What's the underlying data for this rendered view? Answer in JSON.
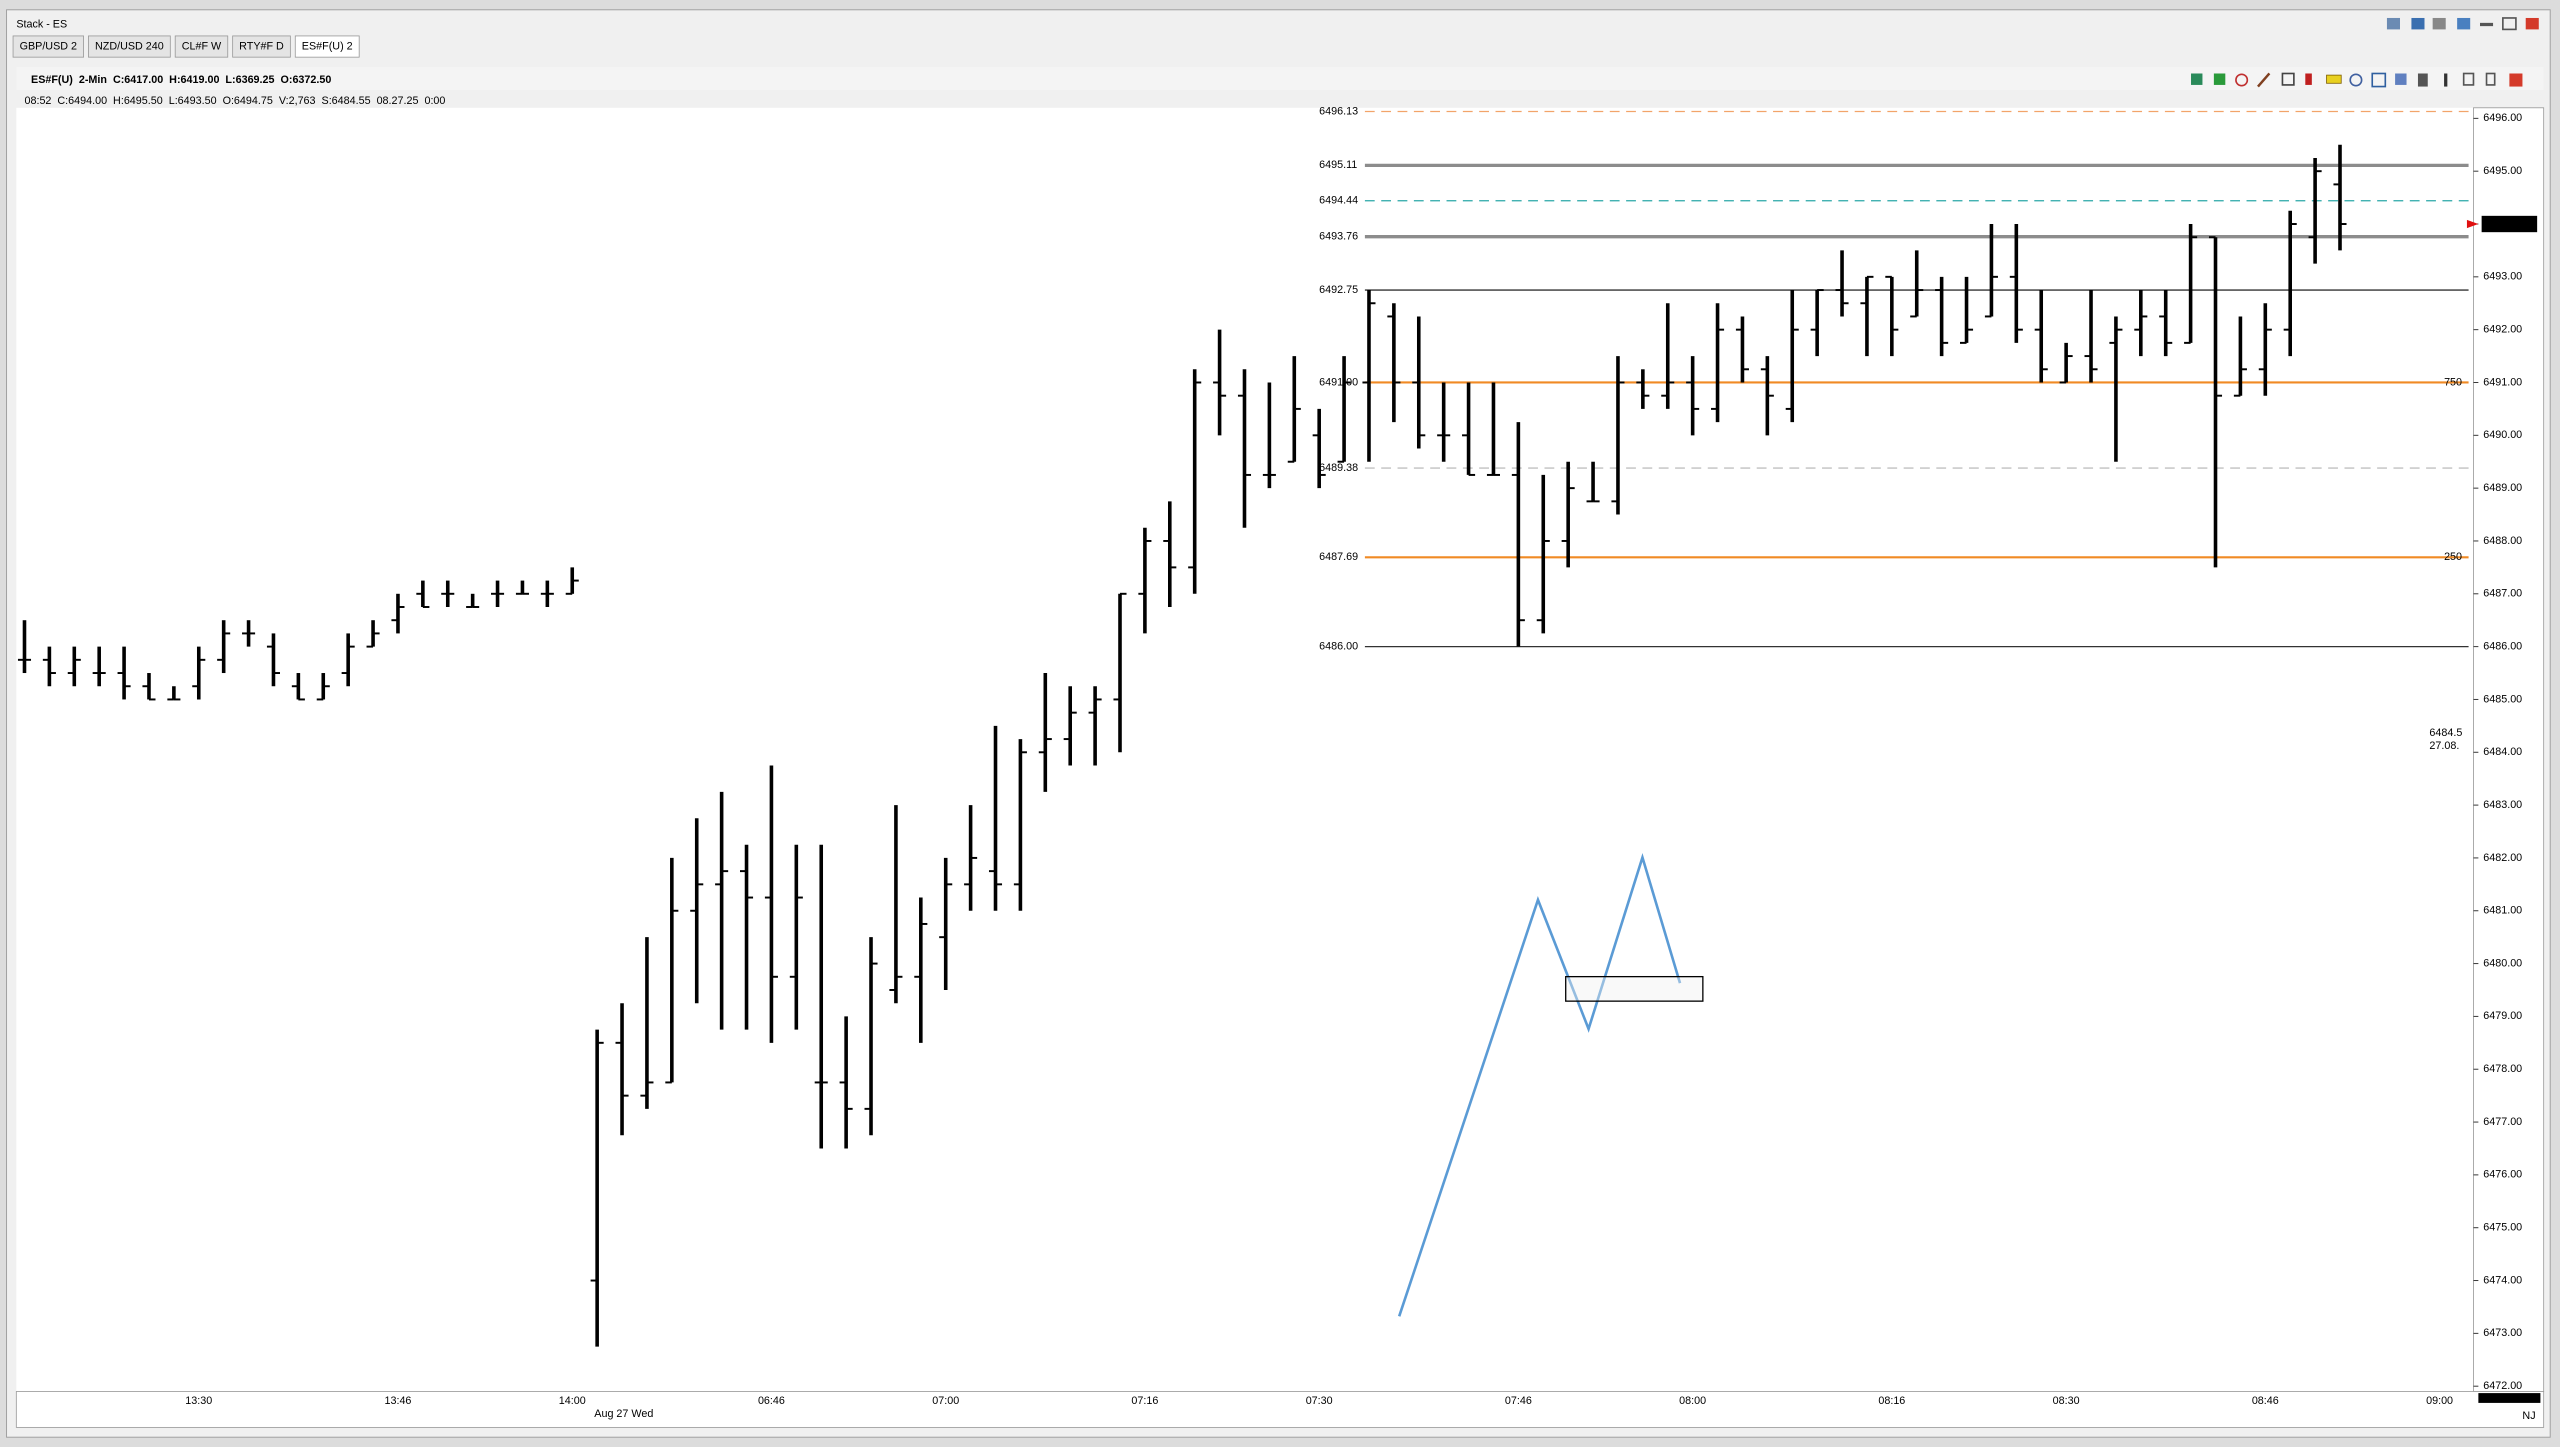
{
  "window": {
    "title": "Stack - ES",
    "tabs": [
      "GBP/USD 2",
      "NZD/USD 240",
      "CL#F W",
      "RTY#F D",
      "ES#F(U) 2"
    ]
  },
  "header": {
    "symbol_line": "ES#F(U)  2-Min  C:6417.00  H:6419.00  L:6369.25  O:6372.50",
    "bar_line": "08:52  C:6494.00  H:6495.50  L:6493.50  O:6494.75  V:2,763  S:6484.55  08.27.25  0:00"
  },
  "chart_data": {
    "type": "ohlc",
    "color": "#000000",
    "date_label": "Aug 27 Wed",
    "corner_label": "NJ",
    "faded_labels": [
      "6484.5",
      "27.08."
    ],
    "categories": [
      null,
      null,
      null,
      null,
      null,
      null,
      null,
      "13:30",
      null,
      null,
      null,
      null,
      null,
      null,
      null,
      "13:46",
      null,
      null,
      null,
      null,
      null,
      null,
      "14:00",
      null,
      null,
      null,
      null,
      null,
      null,
      null,
      "06:46",
      null,
      null,
      null,
      null,
      null,
      null,
      "07:00",
      null,
      null,
      null,
      null,
      null,
      null,
      null,
      "07:16",
      null,
      null,
      null,
      null,
      null,
      null,
      "07:30",
      null,
      null,
      null,
      null,
      null,
      null,
      null,
      "07:46",
      null,
      null,
      null,
      null,
      null,
      null,
      "08:00",
      null,
      null,
      null,
      null,
      null,
      null,
      null,
      "08:16",
      null,
      null,
      null,
      null,
      null,
      null,
      "08:30",
      null,
      null,
      null,
      null,
      null,
      null,
      null,
      "08:46",
      null,
      null,
      null,
      null,
      null,
      null,
      "09:00"
    ],
    "open": [
      6485.75,
      6485.75,
      6485.5,
      6485.5,
      6485.5,
      6485.25,
      6485.0,
      6485.25,
      6485.75,
      6486.25,
      6486.0,
      6485.25,
      6485.0,
      6485.5,
      6486.0,
      6486.5,
      6487.0,
      6487.0,
      6486.75,
      6487.0,
      6487.0,
      6487.0,
      6487.0,
      6474.0,
      6478.5,
      6477.5,
      6477.75,
      6481.0,
      6481.5,
      6481.75,
      6481.25,
      6479.75,
      6477.75,
      6477.75,
      6477.25,
      6479.5,
      6479.75,
      6480.5,
      6481.5,
      6481.75,
      6481.5,
      6484.0,
      6484.25,
      6484.75,
      6485.0,
      6487.0,
      6488.0,
      6487.5,
      6491.0,
      6490.75,
      6489.25,
      6489.5,
      6490.0,
      6489.5,
      6491.0,
      6492.25,
      6491.0,
      6490.0,
      6490.0,
      6489.25,
      6489.25,
      6486.5,
      6488.0,
      6488.75,
      6488.75,
      6491.0,
      6490.75,
      6491.0,
      6490.5,
      6492.0,
      6491.25,
      6490.5,
      6492.0,
      6492.75,
      6492.5,
      6493.0,
      6492.25,
      6492.75,
      6491.75,
      6492.25,
      6493.0,
      6492.0,
      6491.0,
      6491.5,
      6491.75,
      6492.0,
      6492.25,
      6491.75,
      6493.75,
      6490.75,
      6491.25,
      6492.0,
      6493.75,
      6494.75,
      null,
      null,
      null,
      null
    ],
    "high": [
      6486.5,
      6486.0,
      6486.0,
      6486.0,
      6486.0,
      6485.5,
      6485.25,
      6486.0,
      6486.5,
      6486.5,
      6486.25,
      6485.5,
      6485.5,
      6486.25,
      6486.5,
      6487.0,
      6487.25,
      6487.25,
      6487.0,
      6487.25,
      6487.25,
      6487.25,
      6487.5,
      6478.75,
      6479.25,
      6480.5,
      6482.0,
      6482.75,
      6483.25,
      6482.25,
      6483.75,
      6482.25,
      6482.25,
      6479.0,
      6480.5,
      6483.0,
      6481.25,
      6482.0,
      6483.0,
      6484.5,
      6484.25,
      6485.5,
      6485.25,
      6485.25,
      6487.0,
      6488.25,
      6488.75,
      6491.25,
      6492.0,
      6491.25,
      6491.0,
      6491.5,
      6490.5,
      6491.5,
      6492.75,
      6492.5,
      6492.25,
      6491.0,
      6491.0,
      6491.0,
      6490.25,
      6489.25,
      6489.5,
      6489.5,
      6491.5,
      6491.25,
      6492.5,
      6491.5,
      6492.5,
      6492.25,
      6491.5,
      6492.75,
      6492.75,
      6493.5,
      6493.0,
      6493.0,
      6493.5,
      6493.0,
      6493.0,
      6494.0,
      6494.0,
      6492.75,
      6491.75,
      6492.75,
      6492.25,
      6492.75,
      6492.75,
      6494.0,
      6493.75,
      6492.25,
      6492.5,
      6494.25,
      6495.25,
      6495.5,
      null,
      null,
      null,
      null
    ],
    "low": [
      6485.5,
      6485.25,
      6485.25,
      6485.25,
      6485.0,
      6485.0,
      6485.0,
      6485.0,
      6485.5,
      6486.0,
      6485.25,
      6485.0,
      6485.0,
      6485.25,
      6486.0,
      6486.25,
      6486.75,
      6486.75,
      6486.75,
      6486.75,
      6487.0,
      6486.75,
      6487.0,
      6472.75,
      6476.75,
      6477.25,
      6477.75,
      6479.25,
      6478.75,
      6478.75,
      6478.5,
      6478.75,
      6476.5,
      6476.5,
      6476.75,
      6479.25,
      6478.5,
      6479.5,
      6481.0,
      6481.0,
      6481.0,
      6483.25,
      6483.75,
      6483.75,
      6484.0,
      6486.25,
      6486.75,
      6487.0,
      6490.0,
      6488.25,
      6489.0,
      6489.5,
      6489.0,
      6489.5,
      6489.5,
      6490.25,
      6489.75,
      6489.5,
      6489.25,
      6489.25,
      6486.0,
      6486.25,
      6487.5,
      6488.75,
      6488.5,
      6490.5,
      6490.5,
      6490.0,
      6490.25,
      6491.0,
      6490.0,
      6490.25,
      6491.5,
      6492.25,
      6491.5,
      6491.5,
      6492.25,
      6491.5,
      6491.75,
      6492.25,
      6491.75,
      6491.0,
      6491.0,
      6491.0,
      6489.5,
      6491.5,
      6491.5,
      6491.75,
      6487.5,
      6490.75,
      6490.75,
      6491.5,
      6493.25,
      6493.5,
      null,
      null,
      null,
      null
    ],
    "close": [
      6485.75,
      6485.5,
      6485.75,
      6485.5,
      6485.25,
      6485.0,
      6485.0,
      6485.75,
      6486.25,
      6486.25,
      6485.5,
      6485.0,
      6485.25,
      6486.0,
      6486.25,
      6486.75,
      6486.75,
      6487.0,
      6486.75,
      6487.0,
      6487.0,
      6487.0,
      6487.25,
      6478.5,
      6477.5,
      6477.75,
      6481.0,
      6481.5,
      6481.75,
      6481.25,
      6479.75,
      6481.25,
      6477.75,
      6477.25,
      6480.0,
      6479.75,
      6480.75,
      6481.5,
      6482.0,
      6481.5,
      6484.0,
      6484.25,
      6484.75,
      6485.0,
      6487.0,
      6488.0,
      6487.5,
      6491.0,
      6490.75,
      6489.25,
      6489.25,
      6490.5,
      6489.25,
      6491.0,
      6492.5,
      6491.0,
      6490.0,
      6490.0,
      6489.25,
      6489.25,
      6486.5,
      6488.0,
      6489.0,
      6488.75,
      6491.0,
      6490.75,
      6491.0,
      6490.5,
      6492.0,
      6491.25,
      6490.75,
      6492.0,
      6492.75,
      6492.5,
      6493.0,
      6492.0,
      6492.75,
      6491.75,
      6492.0,
      6493.0,
      6492.0,
      6491.25,
      6491.5,
      6491.25,
      6492.0,
      6492.25,
      6491.75,
      6493.75,
      6490.75,
      6491.25,
      6492.0,
      6494.0,
      6495.0,
      6494.0,
      null,
      null,
      null,
      null
    ],
    "ylim": [
      6471.9,
      6496.2
    ],
    "yticks": [
      {
        "value": 6472,
        "label": "6472.00"
      },
      {
        "value": 6473,
        "label": "6473.00"
      },
      {
        "value": 6474,
        "label": "6474.00"
      },
      {
        "value": 6475,
        "label": "6475.00"
      },
      {
        "value": 6476,
        "label": "6476.00"
      },
      {
        "value": 6477,
        "label": "6477.00"
      },
      {
        "value": 6478,
        "label": "6478.00"
      },
      {
        "value": 6479,
        "label": "6479.00"
      },
      {
        "value": 6480,
        "label": "6480.00"
      },
      {
        "value": 6481,
        "label": "6481.00"
      },
      {
        "value": 6482,
        "label": "6482.00"
      },
      {
        "value": 6483,
        "label": "6483.00"
      },
      {
        "value": 6484,
        "label": "6484.00"
      },
      {
        "value": 6485,
        "label": "6485.00"
      },
      {
        "value": 6486,
        "label": "6486.00"
      },
      {
        "value": 6487,
        "label": "6487.00"
      },
      {
        "value": 6488,
        "label": "6488.00"
      },
      {
        "value": 6489,
        "label": "6489.00"
      },
      {
        "value": 6490,
        "label": "6490.00"
      },
      {
        "value": 6491,
        "label": "6491.00"
      },
      {
        "value": 6492,
        "label": "6492.00"
      },
      {
        "value": 6493,
        "label": "6493.00"
      },
      {
        "value": 6494,
        "label": "6494.00"
      },
      {
        "value": 6495,
        "label": "6495.00"
      },
      {
        "value": 6496,
        "label": "6496.00"
      }
    ],
    "levels": [
      {
        "value": 6496.13,
        "color": "#f2a46a",
        "style": "dashed",
        "weight": "light"
      },
      {
        "value": 6495.11,
        "color": "#8c8c8c",
        "style": "solid",
        "weight": "heavy"
      },
      {
        "value": 6494.44,
        "color": "#2aa7a7",
        "style": "dashed",
        "weight": "light"
      },
      {
        "value": 6493.76,
        "color": "#8c8c8c",
        "style": "solid",
        "weight": "heavy"
      },
      {
        "value": 6492.75,
        "color": "#333333",
        "style": "solid",
        "weight": "light"
      },
      {
        "value": 6491,
        "label": "6491.00",
        "tag": "750",
        "color": "#f08a24",
        "style": "solid",
        "weight": "medium"
      },
      {
        "value": 6489.38,
        "color": "#c0c0c0",
        "style": "dashed",
        "weight": "light"
      },
      {
        "value": 6487.69,
        "tag": "250",
        "color": "#f08a24",
        "style": "solid",
        "weight": "medium"
      },
      {
        "value": 6486,
        "label": "6486.00",
        "color": "#333333",
        "style": "solid",
        "weight": "light"
      }
    ],
    "last_price": {
      "value": 6494,
      "label": "6494.00",
      "color": "#000000",
      "arrow_color": "#e01010"
    }
  }
}
